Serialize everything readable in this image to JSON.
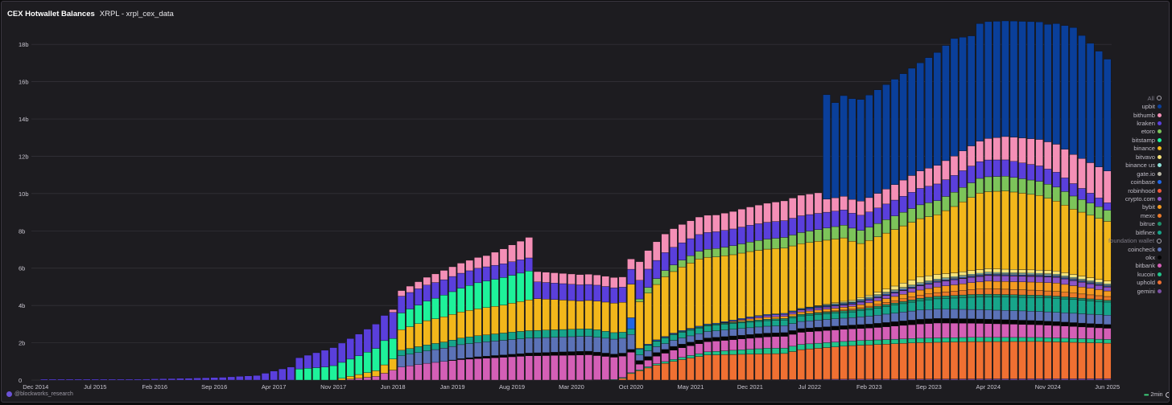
{
  "header": {
    "title": "CEX Hotwallet Balances",
    "subtitle": "XRPL - xrpl_cex_data"
  },
  "footer": {
    "attribution": "@blockworks_research",
    "refresh": "2min"
  },
  "colors": {
    "background": "#1d1c20",
    "grid": "#36343b",
    "axis_text": "#c8c5cf",
    "bar_border": "#0e0e10"
  },
  "legend": [
    {
      "name": "All",
      "color": "#a9a6b0",
      "hollow": true,
      "dim": true
    },
    {
      "name": "upbit",
      "color": "#0a3f9a"
    },
    {
      "name": "bithumb",
      "color": "#f48fb6"
    },
    {
      "name": "kraken",
      "color": "#5a3fdc"
    },
    {
      "name": "etoro",
      "color": "#7cc45a"
    },
    {
      "name": "bitstamp",
      "color": "#1ef29a"
    },
    {
      "name": "binance",
      "color": "#f2b71b"
    },
    {
      "name": "bitvavo",
      "color": "#f5e27a"
    },
    {
      "name": "binance us",
      "color": "#8fe1d8"
    },
    {
      "name": "gate.io",
      "color": "#b9b7a6"
    },
    {
      "name": "coinbase",
      "color": "#1f66e5"
    },
    {
      "name": "robinhood",
      "color": "#f0583a"
    },
    {
      "name": "crypto.com",
      "color": "#8b55c8"
    },
    {
      "name": "bybit",
      "color": "#f39a21"
    },
    {
      "name": "mexc",
      "color": "#ea7a2a"
    },
    {
      "name": "bitrue",
      "color": "#1f8f6a"
    },
    {
      "name": "bitfinex",
      "color": "#17a58a"
    },
    {
      "name": "foundation wallet",
      "color": "#a9a6b0",
      "hollow": true,
      "dim": true
    },
    {
      "name": "coincheck",
      "color": "#5b72b7"
    },
    {
      "name": "okx",
      "color": "#050505"
    },
    {
      "name": "bitbank",
      "color": "#d45fb6"
    },
    {
      "name": "kucoin",
      "color": "#22c48b"
    },
    {
      "name": "uphold",
      "color": "#f07032"
    },
    {
      "name": "gemini",
      "color": "#7c4fa6"
    }
  ],
  "chart_data": {
    "type": "bar",
    "stacked": true,
    "title": "CEX Hotwallet Balances",
    "xlabel": "",
    "ylabel": "",
    "ylim": [
      0,
      19000000000
    ],
    "yticks": [
      {
        "value": 0,
        "label": "0"
      },
      {
        "value": 2000000000,
        "label": "2b"
      },
      {
        "value": 4000000000,
        "label": "4b"
      },
      {
        "value": 6000000000,
        "label": "6b"
      },
      {
        "value": 8000000000,
        "label": "8b"
      },
      {
        "value": 10000000000,
        "label": "10b"
      },
      {
        "value": 12000000000,
        "label": "12b"
      },
      {
        "value": 14000000000,
        "label": "14b"
      },
      {
        "value": 16000000000,
        "label": "16b"
      },
      {
        "value": 18000000000,
        "label": "18b"
      }
    ],
    "xticks": [
      {
        "index": 0,
        "label": "Dec 2014"
      },
      {
        "index": 7,
        "label": "Jul 2015"
      },
      {
        "index": 14,
        "label": "Feb 2016"
      },
      {
        "index": 21,
        "label": "Sep 2016"
      },
      {
        "index": 28,
        "label": "Apr 2017"
      },
      {
        "index": 35,
        "label": "Nov 2017"
      },
      {
        "index": 42,
        "label": "Jun 2018"
      },
      {
        "index": 49,
        "label": "Jan 2019"
      },
      {
        "index": 56,
        "label": "Aug 2019"
      },
      {
        "index": 63,
        "label": "Mar 2020"
      },
      {
        "index": 70,
        "label": "Oct 2020"
      },
      {
        "index": 77,
        "label": "May 2021"
      },
      {
        "index": 84,
        "label": "Dec 2021"
      },
      {
        "index": 91,
        "label": "Jul 2022"
      },
      {
        "index": 98,
        "label": "Feb 2023"
      },
      {
        "index": 105,
        "label": "Sep 2023"
      },
      {
        "index": 112,
        "label": "Apr 2024"
      },
      {
        "index": 119,
        "label": "Nov 2024"
      },
      {
        "index": 126,
        "label": "Jun 2025"
      }
    ],
    "period": "monthly, Dec 2014 to Jun 2025 (127 bars)",
    "series_order": [
      "gemini",
      "uphold",
      "kucoin",
      "bitbank",
      "okx",
      "coincheck",
      "bitfinex",
      "bitrue",
      "mexc",
      "bybit",
      "crypto.com",
      "robinhood",
      "coinbase",
      "gate.io",
      "binance us",
      "bitvavo",
      "binance",
      "bitstamp",
      "etoro",
      "kraken",
      "bithumb",
      "upbit"
    ],
    "keyframes_note": "values in billions XRP at key month indexes; months between are linearly interpolated",
    "keyframes": {
      "gemini": [
        [
          0,
          0
        ],
        [
          80,
          0
        ],
        [
          95,
          0.05
        ],
        [
          126,
          0.08
        ]
      ],
      "uphold": [
        [
          0,
          0
        ],
        [
          68,
          0
        ],
        [
          69,
          0.1
        ],
        [
          70,
          0.35
        ],
        [
          71,
          0.5
        ],
        [
          73,
          0.8
        ],
        [
          76,
          1.1
        ],
        [
          79,
          1.35
        ],
        [
          88,
          1.4
        ],
        [
          90,
          1.6
        ],
        [
          93,
          1.7
        ],
        [
          96,
          1.8
        ],
        [
          104,
          1.95
        ],
        [
          110,
          2.0
        ],
        [
          118,
          2.0
        ],
        [
          126,
          1.9
        ]
      ],
      "kucoin": [
        [
          0,
          0
        ],
        [
          64,
          0
        ],
        [
          71,
          0.05
        ],
        [
          78,
          0.15
        ],
        [
          86,
          0.3
        ],
        [
          96,
          0.25
        ],
        [
          126,
          0.2
        ]
      ],
      "bitbank": [
        [
          0,
          0
        ],
        [
          36,
          0
        ],
        [
          40,
          0.2
        ],
        [
          43,
          0.7
        ],
        [
          46,
          0.9
        ],
        [
          50,
          1.1
        ],
        [
          58,
          1.3
        ],
        [
          65,
          1.35
        ],
        [
          70,
          1.1
        ],
        [
          71,
          0.3
        ],
        [
          75,
          0.5
        ],
        [
          80,
          0.55
        ],
        [
          90,
          0.65
        ],
        [
          98,
          0.65
        ],
        [
          106,
          0.8
        ],
        [
          126,
          0.6
        ]
      ],
      "okx": [
        [
          0,
          0
        ],
        [
          48,
          0
        ],
        [
          52,
          0.1
        ],
        [
          58,
          0.15
        ],
        [
          64,
          0.2
        ],
        [
          70,
          0.15
        ],
        [
          71,
          0.2
        ],
        [
          80,
          0.2
        ],
        [
          96,
          0.2
        ],
        [
          104,
          0.25
        ],
        [
          126,
          0.2
        ]
      ],
      "coincheck": [
        [
          0,
          0
        ],
        [
          42,
          0
        ],
        [
          43,
          0.6
        ],
        [
          50,
          0.75
        ],
        [
          58,
          0.8
        ],
        [
          66,
          0.8
        ],
        [
          70,
          0.8
        ],
        [
          71,
          0.3
        ],
        [
          80,
          0.35
        ],
        [
          96,
          0.4
        ],
        [
          104,
          0.5
        ],
        [
          114,
          0.5
        ],
        [
          126,
          0.5
        ]
      ],
      "bitfinex": [
        [
          0,
          0
        ],
        [
          42,
          0
        ],
        [
          43,
          0.3
        ],
        [
          50,
          0.35
        ],
        [
          56,
          0.4
        ],
        [
          66,
          0.4
        ],
        [
          70,
          0.3
        ],
        [
          71,
          0.3
        ],
        [
          80,
          0.3
        ],
        [
          96,
          0.3
        ],
        [
          108,
          0.6
        ],
        [
          112,
          0.7
        ],
        [
          120,
          0.75
        ],
        [
          126,
          0.7
        ]
      ],
      "bitrue": [
        [
          0,
          0
        ],
        [
          71,
          0
        ],
        [
          76,
          0.05
        ],
        [
          96,
          0.1
        ],
        [
          110,
          0.15
        ],
        [
          126,
          0.1
        ]
      ],
      "mexc": [
        [
          0,
          0
        ],
        [
          90,
          0
        ],
        [
          96,
          0.05
        ],
        [
          106,
          0.2
        ],
        [
          112,
          0.3
        ],
        [
          120,
          0.25
        ],
        [
          126,
          0.2
        ]
      ],
      "bybit": [
        [
          0,
          0
        ],
        [
          80,
          0
        ],
        [
          84,
          0.1
        ],
        [
          96,
          0.15
        ],
        [
          106,
          0.3
        ],
        [
          112,
          0.4
        ],
        [
          120,
          0.45
        ],
        [
          126,
          0.3
        ]
      ],
      "crypto.com": [
        [
          0,
          0
        ],
        [
          80,
          0
        ],
        [
          86,
          0.1
        ],
        [
          96,
          0.12
        ],
        [
          106,
          0.25
        ],
        [
          112,
          0.3
        ],
        [
          120,
          0.3
        ],
        [
          126,
          0.2
        ]
      ],
      "robinhood": [
        [
          0,
          0
        ],
        [
          86,
          0
        ],
        [
          92,
          0.02
        ],
        [
          126,
          0.03
        ]
      ],
      "coinbase": [
        [
          0,
          0
        ],
        [
          69,
          0
        ],
        [
          70,
          0.6
        ],
        [
          71,
          0.05
        ],
        [
          80,
          0.05
        ],
        [
          126,
          0.05
        ]
      ],
      "gate.io": [
        [
          0,
          0
        ],
        [
          90,
          0
        ],
        [
          100,
          0.05
        ],
        [
          126,
          0.05
        ]
      ],
      "binance us": [
        [
          0,
          0
        ],
        [
          88,
          0
        ],
        [
          96,
          0.05
        ],
        [
          126,
          0.05
        ]
      ],
      "bitvavo": [
        [
          0,
          0
        ],
        [
          90,
          0
        ],
        [
          98,
          0.1
        ],
        [
          104,
          0.3
        ],
        [
          108,
          0.2
        ],
        [
          126,
          0.15
        ]
      ],
      "binance": [
        [
          0,
          0
        ],
        [
          35,
          0
        ],
        [
          36,
          0.1
        ],
        [
          40,
          0.3
        ],
        [
          42,
          0.6
        ],
        [
          43,
          1.1
        ],
        [
          46,
          1.3
        ],
        [
          50,
          1.4
        ],
        [
          55,
          1.5
        ],
        [
          59,
          1.7
        ],
        [
          64,
          1.5
        ],
        [
          69,
          1.6
        ],
        [
          70,
          1.8
        ],
        [
          71,
          2.5
        ],
        [
          74,
          3.2
        ],
        [
          78,
          3.6
        ],
        [
          82,
          3.5
        ],
        [
          88,
          3.5
        ],
        [
          95,
          3.4
        ],
        [
          97,
          2.9
        ],
        [
          100,
          3.0
        ],
        [
          106,
          3.2
        ],
        [
          111,
          4.1
        ],
        [
          114,
          4.2
        ],
        [
          118,
          4.0
        ],
        [
          122,
          3.5
        ],
        [
          126,
          3.2
        ]
      ],
      "bitstamp": [
        [
          0,
          0
        ],
        [
          30,
          0
        ],
        [
          31,
          0.6
        ],
        [
          34,
          0.7
        ],
        [
          38,
          1.0
        ],
        [
          41,
          1.3
        ],
        [
          43,
          0.9
        ],
        [
          47,
          1.1
        ],
        [
          52,
          1.4
        ],
        [
          56,
          1.5
        ],
        [
          58,
          1.55
        ],
        [
          59,
          0
        ],
        [
          126,
          0
        ]
      ],
      "etoro": [
        [
          0,
          0
        ],
        [
          70,
          0
        ],
        [
          72,
          0.3
        ],
        [
          80,
          0.45
        ],
        [
          90,
          0.6
        ],
        [
          96,
          0.7
        ],
        [
          106,
          0.75
        ],
        [
          112,
          0.8
        ],
        [
          120,
          0.75
        ],
        [
          126,
          0.6
        ]
      ],
      "kraken": [
        [
          0,
          0
        ],
        [
          1,
          0.05
        ],
        [
          12,
          0.05
        ],
        [
          18,
          0.1
        ],
        [
          22,
          0.15
        ],
        [
          26,
          0.25
        ],
        [
          29,
          0.6
        ],
        [
          30,
          0.7
        ],
        [
          31,
          0.6
        ],
        [
          34,
          0.9
        ],
        [
          37,
          1.1
        ],
        [
          40,
          1.3
        ],
        [
          42,
          1.4
        ],
        [
          43,
          0.9
        ],
        [
          50,
          0.8
        ],
        [
          58,
          0.7
        ],
        [
          59,
          0.9
        ],
        [
          66,
          0.85
        ],
        [
          70,
          0.8
        ],
        [
          71,
          1.0
        ],
        [
          78,
          0.9
        ],
        [
          90,
          0.9
        ],
        [
          96,
          0.8
        ],
        [
          106,
          0.9
        ],
        [
          112,
          0.9
        ],
        [
          120,
          0.8
        ],
        [
          126,
          0.4
        ]
      ],
      "bithumb": [
        [
          0,
          0
        ],
        [
          41,
          0
        ],
        [
          43,
          0.3
        ],
        [
          48,
          0.5
        ],
        [
          53,
          0.6
        ],
        [
          56,
          0.9
        ],
        [
          58,
          1.1
        ],
        [
          59,
          0.55
        ],
        [
          66,
          0.55
        ],
        [
          70,
          0.55
        ],
        [
          71,
          1.0
        ],
        [
          75,
          1.0
        ],
        [
          80,
          0.9
        ],
        [
          90,
          1.1
        ],
        [
          92,
          1.1
        ],
        [
          93,
          0.7
        ],
        [
          100,
          0.8
        ],
        [
          106,
          1.0
        ],
        [
          111,
          1.1
        ],
        [
          115,
          1.3
        ],
        [
          120,
          1.5
        ],
        [
          126,
          1.7
        ]
      ],
      "upbit": [
        [
          0,
          0
        ],
        [
          92,
          0
        ],
        [
          93,
          5.6
        ],
        [
          94,
          5.1
        ],
        [
          95,
          5.4
        ],
        [
          96,
          5.4
        ],
        [
          100,
          5.6
        ],
        [
          104,
          5.8
        ],
        [
          108,
          6.3
        ],
        [
          110,
          5.9
        ],
        [
          111,
          6.3
        ],
        [
          114,
          6.2
        ],
        [
          118,
          6.3
        ],
        [
          119,
          6.3
        ],
        [
          122,
          6.8
        ],
        [
          126,
          6.0
        ]
      ]
    }
  }
}
